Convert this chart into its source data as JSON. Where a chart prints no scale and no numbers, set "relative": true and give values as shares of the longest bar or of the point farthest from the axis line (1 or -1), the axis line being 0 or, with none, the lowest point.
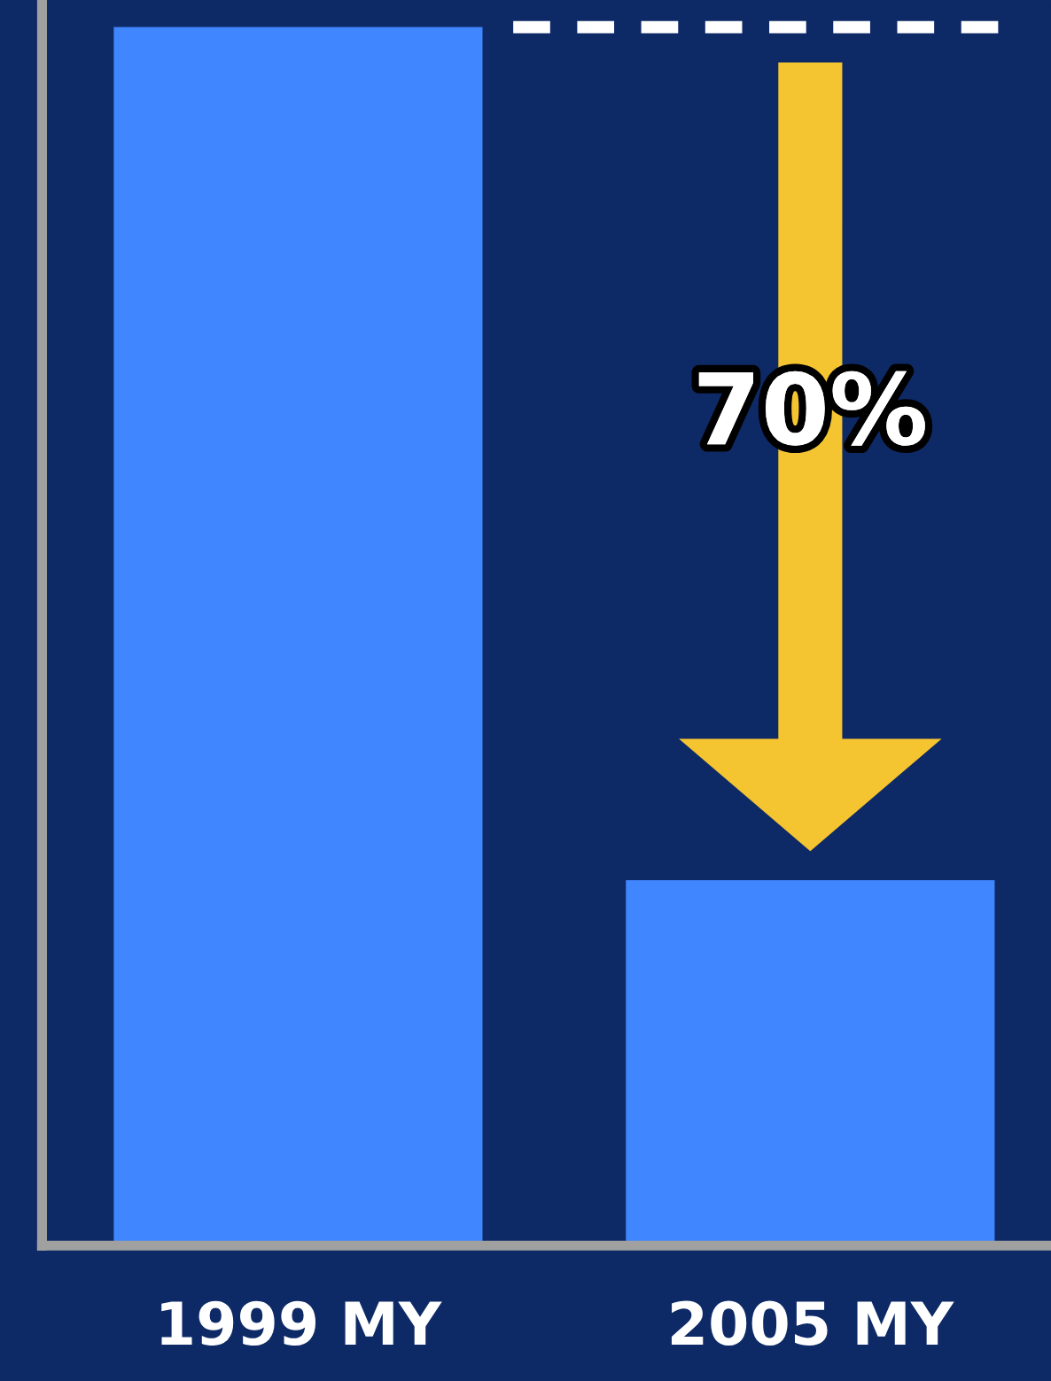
{
  "chart_data": {
    "type": "bar",
    "relative": true,
    "categories": [
      "1999 MY",
      "2005 MY"
    ],
    "values": [
      1,
      0.3
    ],
    "color": "#3f86ff",
    "ref_lines": [
      {
        "axis": "y",
        "value": 1,
        "color": "#ffffff",
        "line_style": "dashed"
      }
    ],
    "annotations": [
      "70%"
    ],
    "grid": false,
    "legend": false
  }
}
